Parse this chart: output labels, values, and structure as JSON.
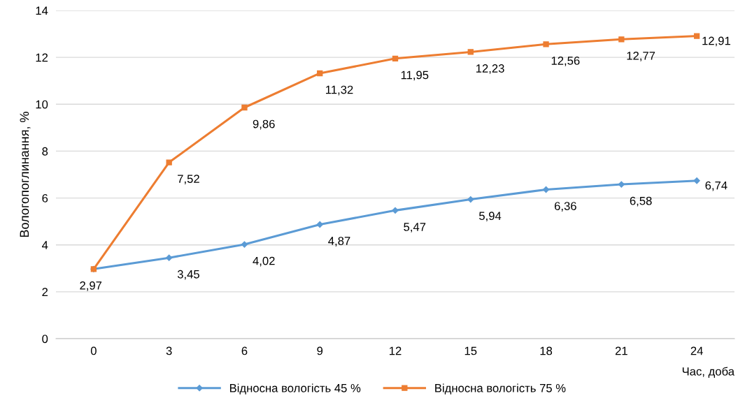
{
  "chart_data": {
    "type": "line",
    "ylabel": "Вологопоглинання, %",
    "xlabel": "Час, доба",
    "categories": [
      "0",
      "3",
      "6",
      "9",
      "12",
      "15",
      "18",
      "21",
      "24"
    ],
    "series": [
      {
        "name": "Відносна вологість 45 %",
        "color": "#5b9bd5",
        "marker": "diamond",
        "values": [
          2.97,
          3.45,
          4.02,
          4.87,
          5.47,
          5.94,
          6.36,
          6.58,
          6.74
        ],
        "value_labels": [
          "2,97",
          "3,45",
          "4,02",
          "4,87",
          "5,47",
          "5,94",
          "6,36",
          "6,58",
          "6,74"
        ]
      },
      {
        "name": "Відносна вологість 75 %",
        "color": "#ed7d31",
        "marker": "square",
        "values": [
          2.97,
          7.52,
          9.86,
          11.32,
          11.95,
          12.23,
          12.56,
          12.77,
          12.91
        ],
        "value_labels": [
          null,
          "7,52",
          "9,86",
          "11,32",
          "11,95",
          "12,23",
          "12,56",
          "12,77",
          "12,91"
        ]
      }
    ],
    "ylim": [
      0,
      14
    ],
    "yticks": [
      0,
      2,
      4,
      6,
      8,
      10,
      12,
      14
    ],
    "grid": "y",
    "legend": "bottom",
    "line_style": "solid"
  }
}
